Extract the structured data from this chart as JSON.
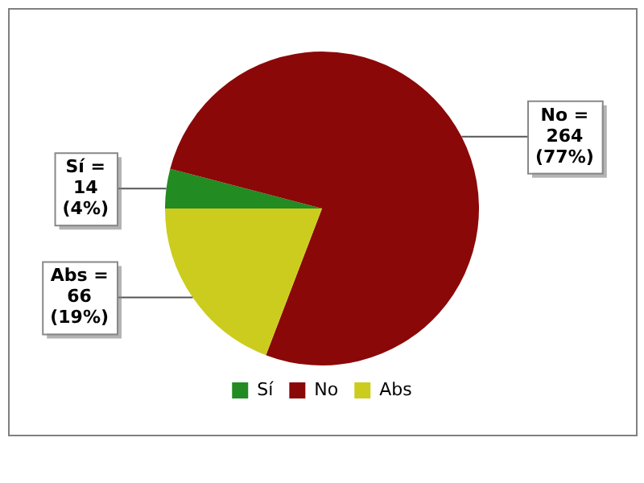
{
  "chart_data": {
    "type": "pie",
    "categories": [
      "Sí",
      "No",
      "Abs"
    ],
    "values": [
      14,
      264,
      66
    ],
    "colors": [
      "#228b22",
      "#8b0808",
      "#cccc1e"
    ],
    "value_labels": [
      "Sí =\n14\n(4%)",
      "No =\n264\n(77%)",
      "Abs =\n66\n(19%)"
    ],
    "legend": "bottom"
  }
}
